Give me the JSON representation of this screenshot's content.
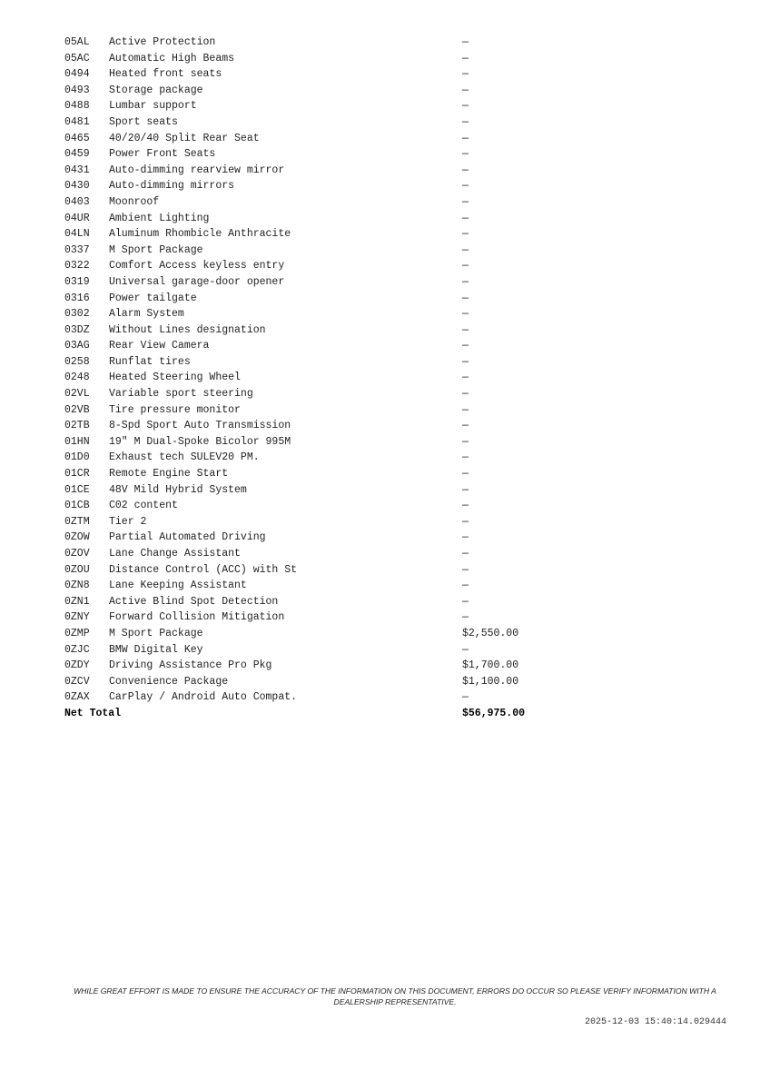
{
  "items": [
    {
      "code": "05AL",
      "desc": "Active Protection",
      "price": "—"
    },
    {
      "code": "05AC",
      "desc": "Automatic High Beams",
      "price": "—"
    },
    {
      "code": "0494",
      "desc": "Heated front seats",
      "price": "—"
    },
    {
      "code": "0493",
      "desc": "Storage package",
      "price": "—"
    },
    {
      "code": "0488",
      "desc": "Lumbar support",
      "price": "—"
    },
    {
      "code": "0481",
      "desc": "Sport seats",
      "price": "—"
    },
    {
      "code": "0465",
      "desc": "40/20/40 Split Rear Seat",
      "price": "—"
    },
    {
      "code": "0459",
      "desc": "Power Front Seats",
      "price": "—"
    },
    {
      "code": "0431",
      "desc": "Auto-dimming rearview mirror",
      "price": "—"
    },
    {
      "code": "0430",
      "desc": "Auto-dimming mirrors",
      "price": "—"
    },
    {
      "code": "0403",
      "desc": "Moonroof",
      "price": "—"
    },
    {
      "code": "04UR",
      "desc": "Ambient Lighting",
      "price": "—"
    },
    {
      "code": "04LN",
      "desc": "Aluminum Rhombicle Anthracite",
      "price": "—"
    },
    {
      "code": "0337",
      "desc": "M Sport Package",
      "price": "—"
    },
    {
      "code": "0322",
      "desc": "Comfort Access keyless entry",
      "price": "—"
    },
    {
      "code": "0319",
      "desc": "Universal garage-door opener",
      "price": "—"
    },
    {
      "code": "0316",
      "desc": "Power tailgate",
      "price": "—"
    },
    {
      "code": "0302",
      "desc": "Alarm System",
      "price": "—"
    },
    {
      "code": "03DZ",
      "desc": "Without Lines designation",
      "price": "—"
    },
    {
      "code": "03AG",
      "desc": "Rear View Camera",
      "price": "—"
    },
    {
      "code": "0258",
      "desc": "Runflat tires",
      "price": "—"
    },
    {
      "code": "0248",
      "desc": "Heated Steering Wheel",
      "price": "—"
    },
    {
      "code": "02VL",
      "desc": "Variable sport steering",
      "price": "—"
    },
    {
      "code": "02VB",
      "desc": "Tire pressure monitor",
      "price": "—"
    },
    {
      "code": "02TB",
      "desc": "8-Spd Sport Auto Transmission",
      "price": "—"
    },
    {
      "code": "01HN",
      "desc": "19\" M Dual-Spoke Bicolor 995M",
      "price": "—"
    },
    {
      "code": "01D0",
      "desc": "Exhaust tech SULEV20 PM.",
      "price": "—"
    },
    {
      "code": "01CR",
      "desc": "Remote Engine Start",
      "price": "—"
    },
    {
      "code": "01CE",
      "desc": "48V Mild Hybrid System",
      "price": "—"
    },
    {
      "code": "01CB",
      "desc": "C02 content",
      "price": "—"
    },
    {
      "code": "0ZTM",
      "desc": "Tier 2",
      "price": "—"
    },
    {
      "code": "0ZOW",
      "desc": "Partial Automated Driving",
      "price": "—"
    },
    {
      "code": "0ZOV",
      "desc": "Lane Change Assistant",
      "price": "—"
    },
    {
      "code": "0ZOU",
      "desc": "Distance Control (ACC) with St",
      "price": "—"
    },
    {
      "code": "0ZN8",
      "desc": "Lane Keeping Assistant",
      "price": "—"
    },
    {
      "code": "0ZN1",
      "desc": "Active Blind Spot Detection",
      "price": "—"
    },
    {
      "code": "0ZNY",
      "desc": "Forward Collision Mitigation",
      "price": "—"
    },
    {
      "code": "0ZMP",
      "desc": "M Sport Package",
      "price": "$2,550.00"
    },
    {
      "code": "0ZJC",
      "desc": "BMW Digital Key",
      "price": "—"
    },
    {
      "code": "0ZDY",
      "desc": "Driving Assistance Pro Pkg",
      "price": "$1,700.00"
    },
    {
      "code": "0ZCV",
      "desc": "Convenience Package",
      "price": "$1,100.00"
    },
    {
      "code": "0ZAX",
      "desc": "CarPlay / Android Auto Compat.",
      "price": "—"
    }
  ],
  "total": {
    "label": "Net Total",
    "value": "$56,975.00"
  },
  "footer": {
    "disclaimer": "WHILE GREAT EFFORT IS MADE TO ENSURE THE ACCURACY OF THE INFORMATION ON THIS DOCUMENT, ERRORS DO OCCUR SO PLEASE VERIFY INFORMATION WITH A DEALERSHIP REPRESENTATIVE.",
    "timestamp": "2025-12-03 15:40:14.029444"
  }
}
